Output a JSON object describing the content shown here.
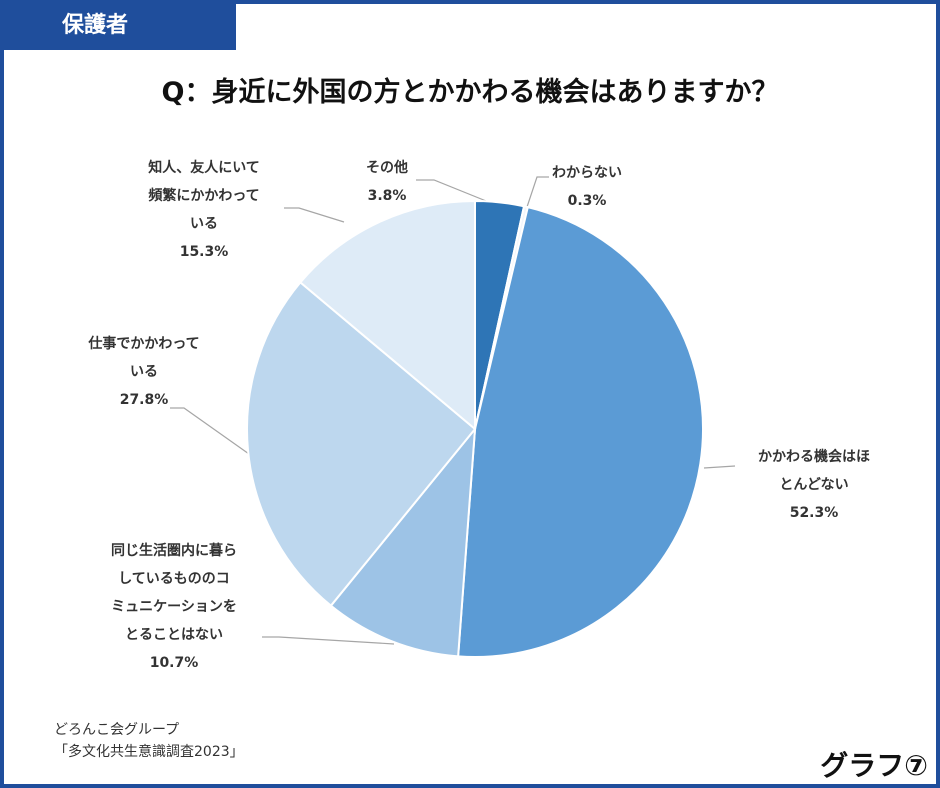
{
  "tab": "保護者",
  "chart_data": {
    "type": "pie",
    "title": "Q：身近に外国の方とかかわる機会はありますか？",
    "categories": [
      "その他",
      "わからない",
      "かかわる機会はほ\nとんどない",
      "同じ生活圏内に暮ら\nしているもののコ\nミュニケーションを\nとることはない",
      "仕事でかかわって\nいる",
      "知人、友人にいて\n頻繁にかかわって\nいる"
    ],
    "values": [
      3.8,
      0.3,
      52.3,
      10.7,
      27.8,
      15.3
    ],
    "value_labels": [
      "3.8%",
      "0.3%",
      "52.3%",
      "10.7%",
      "27.8%",
      "15.3%"
    ],
    "colors": [
      "#2e75b6",
      "#f2f6fb",
      "#5b9bd5",
      "#9dc3e6",
      "#bdd7ee",
      "#deebf7"
    ]
  },
  "footer": {
    "source": "どろんこ会グループ\n「多文化共生意識調査2023」",
    "graph_no": "グラフ⑦"
  }
}
